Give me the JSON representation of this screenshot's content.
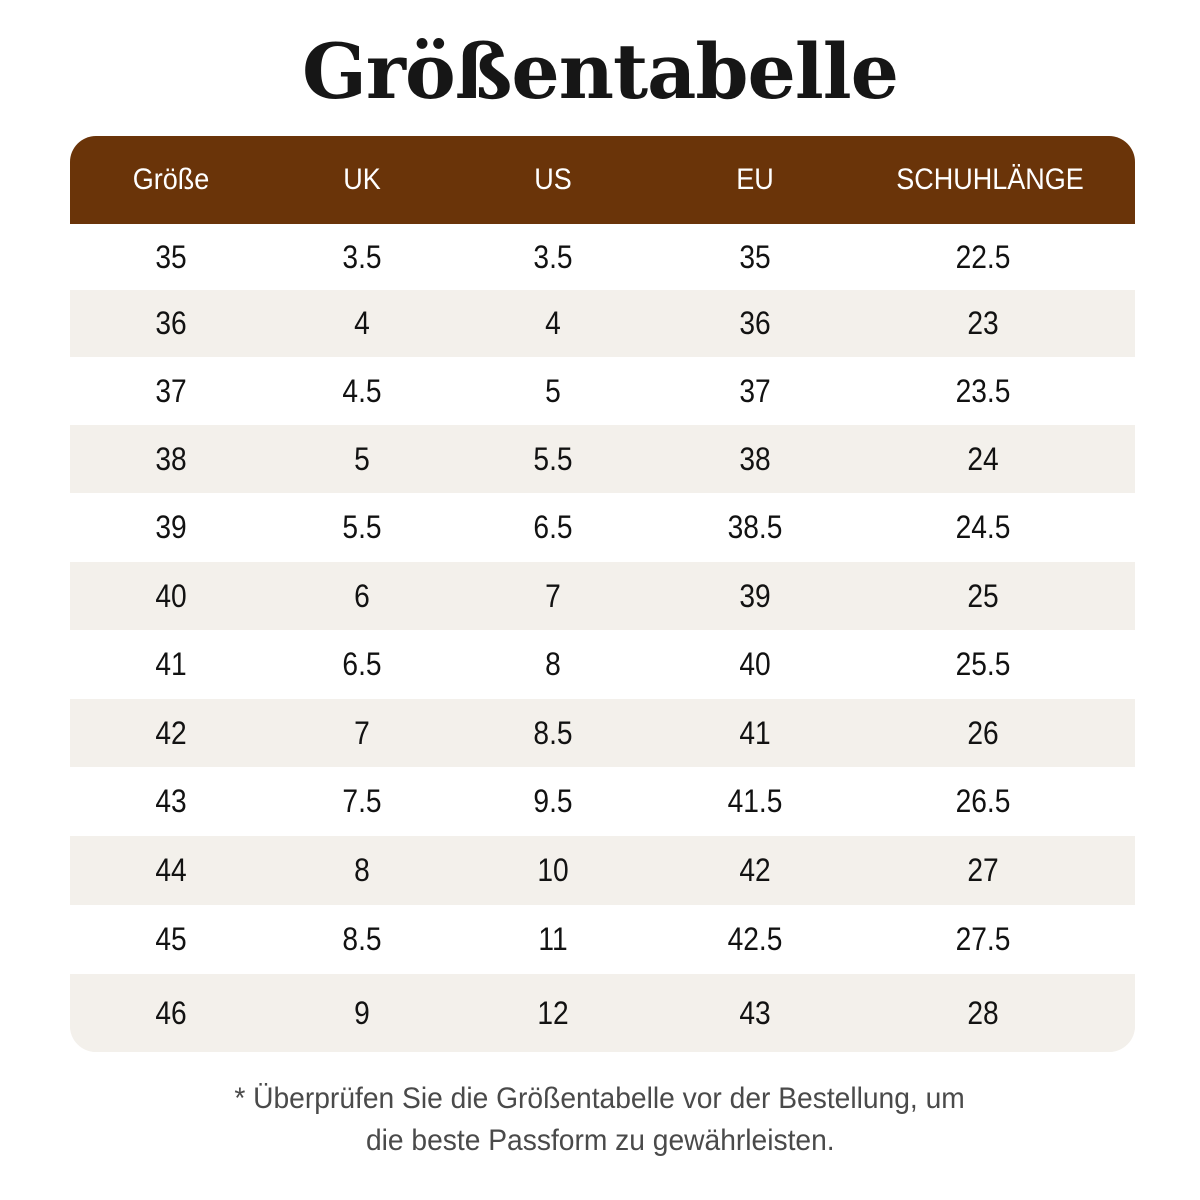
{
  "title": "Größentabelle",
  "table": {
    "headers": [
      "Größe",
      "UK",
      "US",
      "EU",
      "SCHUHLÄNGE"
    ],
    "rows": [
      [
        "35",
        "3.5",
        "3.5",
        "35",
        "22.5"
      ],
      [
        "36",
        "4",
        "4",
        "36",
        "23"
      ],
      [
        "37",
        "4.5",
        "5",
        "37",
        "23.5"
      ],
      [
        "38",
        "5",
        "5.5",
        "38",
        "24"
      ],
      [
        "39",
        "5.5",
        "6.5",
        "38.5",
        "24.5"
      ],
      [
        "40",
        "6",
        "7",
        "39",
        "25"
      ],
      [
        "41",
        "6.5",
        "8",
        "40",
        "25.5"
      ],
      [
        "42",
        "7",
        "8.5",
        "41",
        "26"
      ],
      [
        "43",
        "7.5",
        "9.5",
        "41.5",
        "26.5"
      ],
      [
        "44",
        "8",
        "10",
        "42",
        "27"
      ],
      [
        "45",
        "8.5",
        "11",
        "42.5",
        "27.5"
      ],
      [
        "46",
        "9",
        "12",
        "43",
        "28"
      ]
    ]
  },
  "footnote": {
    "line1": "* Überprüfen Sie die Größentabelle vor der Bestellung, um",
    "line2": "die beste Passform zu gewährleisten."
  },
  "colors": {
    "header_bg": "#6a3409",
    "header_text": "#ffffff",
    "row_alt_bg": "#f3f0eb"
  }
}
